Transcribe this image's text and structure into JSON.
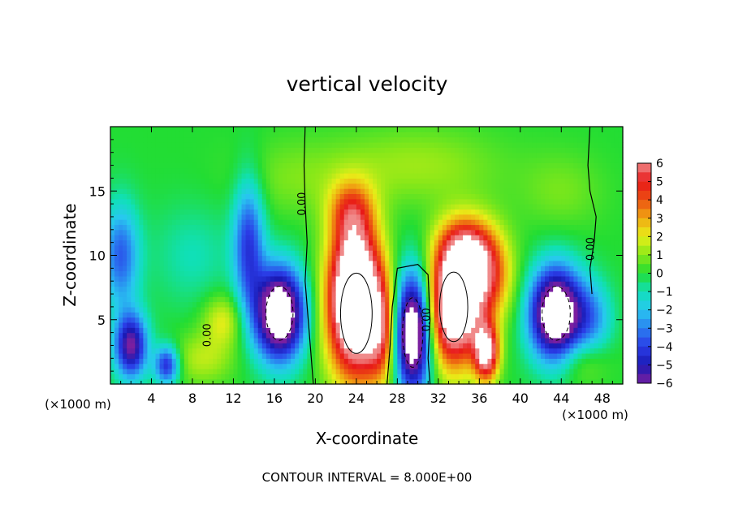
{
  "chart_data": {
    "type": "heatmap",
    "title": "vertical velocity",
    "xlabel": "X-coordinate",
    "ylabel": "Z-coordinate",
    "x_unit_left": "(×1000 m)",
    "x_unit_right": "(×1000 m)",
    "footer": "CONTOUR INTERVAL = 8.000E+00",
    "xlim": [
      0,
      50
    ],
    "ylim": [
      0,
      20
    ],
    "x_ticks": [
      4,
      8,
      12,
      16,
      20,
      24,
      28,
      32,
      36,
      40,
      44,
      48
    ],
    "y_ticks": [
      5,
      10,
      15
    ],
    "colorbar": {
      "range": [
        -6,
        6
      ],
      "tick_values": [
        6,
        5,
        4,
        3,
        2,
        1,
        0,
        -1,
        -2,
        -3,
        -4,
        -5,
        -6
      ],
      "tick_labels": [
        "6",
        "5",
        "4",
        "3",
        "2",
        "1",
        "0",
        "−1",
        "−2",
        "−3",
        "−4",
        "−5",
        "−6"
      ]
    },
    "zero_contour_labels": [
      {
        "text": "0.00",
        "x": 19.0,
        "z": 14.0
      },
      {
        "text": "0.00",
        "x": 31.2,
        "z": 5.0
      },
      {
        "text": "0.00",
        "x": 9.8,
        "z": 3.8
      },
      {
        "text": "0.00",
        "x": 47.2,
        "z": 10.5
      }
    ],
    "features": [
      {
        "x": 24,
        "z": 5.5,
        "w": 2.8,
        "h": 5.2,
        "value": 9
      },
      {
        "x": 23.8,
        "z": 9.5,
        "w": 2.3,
        "h": 4.2,
        "value": 4
      },
      {
        "x": 23.5,
        "z": 13.5,
        "w": 2.2,
        "h": 2.3,
        "value": 3
      },
      {
        "x": 33.5,
        "z": 6,
        "w": 2.5,
        "h": 4.5,
        "value": 9
      },
      {
        "x": 36.5,
        "z": 8.5,
        "w": 2.5,
        "h": 3.5,
        "value": 5
      },
      {
        "x": 34.5,
        "z": 10.5,
        "w": 2.5,
        "h": 2.5,
        "value": 4
      },
      {
        "x": 36.7,
        "z": 2.5,
        "w": 1.2,
        "h": 2.2,
        "value": 7
      },
      {
        "x": 29.5,
        "z": 4,
        "w": 1.8,
        "h": 4.5,
        "value": -9
      },
      {
        "x": 16.5,
        "z": 5.5,
        "w": 2.4,
        "h": 3.5,
        "value": -9
      },
      {
        "x": 43.5,
        "z": 5.5,
        "w": 2.5,
        "h": 3.5,
        "value": -9
      },
      {
        "x": 2,
        "z": 3,
        "w": 1.6,
        "h": 2.5,
        "value": -6
      },
      {
        "x": 1,
        "z": 10,
        "w": 1.8,
        "h": 4,
        "value": -3.5
      },
      {
        "x": 13.5,
        "z": 11,
        "w": 1.5,
        "h": 5,
        "value": -4
      },
      {
        "x": 5.5,
        "z": 1.5,
        "w": 1.2,
        "h": 1.5,
        "value": -4.5
      },
      {
        "x": 26.5,
        "z": 4,
        "w": 1.5,
        "h": 4,
        "value": 3
      },
      {
        "x": 11,
        "z": 5,
        "w": 2,
        "h": 2,
        "value": 2
      },
      {
        "x": 9,
        "z": 2,
        "w": 3,
        "h": 2,
        "value": 1.5
      },
      {
        "x": 46,
        "z": 2,
        "w": 2.5,
        "h": 2,
        "value": 1.5
      },
      {
        "x": 47,
        "z": 5,
        "w": 2,
        "h": 3,
        "value": -2.5
      },
      {
        "x": 8,
        "z": 10,
        "w": 4,
        "h": 4,
        "value": -1
      },
      {
        "x": 18,
        "z": 16,
        "w": 6,
        "h": 3,
        "value": 0.8
      },
      {
        "x": 30,
        "z": 17,
        "w": 8,
        "h": 3,
        "value": 1.2
      },
      {
        "x": 44,
        "z": 15,
        "w": 4,
        "h": 3,
        "value": 0.8
      }
    ]
  }
}
